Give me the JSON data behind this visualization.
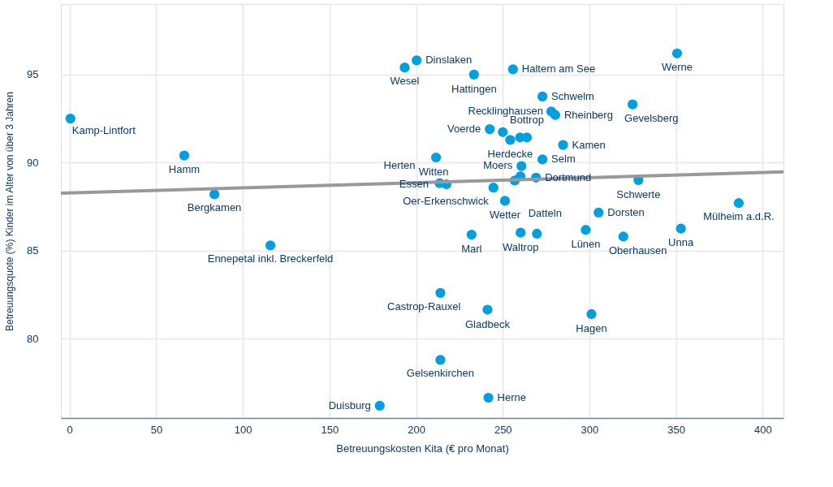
{
  "chart_data": {
    "type": "scatter",
    "xlabel": "Betreuungskosten Kita (€ pro Monat)",
    "ylabel": "Betreuungsquote (%) Kinder im Alter von über 3 Jahren",
    "xlim": [
      -5,
      412
    ],
    "ylim": [
      75.5,
      99
    ],
    "xticks": [
      0,
      50,
      100,
      150,
      200,
      250,
      300,
      350,
      400
    ],
    "yticks": [
      80,
      85,
      90,
      95
    ],
    "grid": true,
    "series": [
      {
        "color": "#009fe0",
        "marker": "circle",
        "x": [
          0.5,
          66.2,
          83.6,
          115.9,
          193.4,
          200.3,
          233.4,
          255.9,
          350.6,
          272.9,
          278,
          280.3,
          324.9,
          242.5,
          250,
          254.3,
          260,
          263.9,
          284.8,
          211.5,
          272.9,
          260.8,
          213.6,
          217.5,
          244.6,
          256.9,
          260.2,
          269.2,
          328.3,
          251.3,
          305.3,
          232,
          260.3,
          269.7,
          297.9,
          319.6,
          352.8,
          386.2,
          214,
          241.2,
          301.2,
          214,
          179,
          241.7
        ],
        "values": [
          92.5,
          90.4,
          88.2,
          85.3,
          95.4,
          95.8,
          95.0,
          95.3,
          96.2,
          93.75,
          92.9,
          92.7,
          93.3,
          91.9,
          91.73,
          91.29,
          91.43,
          91.43,
          91.0,
          90.29,
          90.18,
          89.8,
          88.83,
          88.77,
          88.58,
          88.98,
          89.22,
          89.15,
          89.01,
          87.83,
          87.16,
          85.91,
          86.02,
          85.96,
          86.18,
          85.8,
          86.25,
          87.7,
          82.6,
          81.65,
          81.4,
          78.8,
          76.2,
          76.65
        ]
      },
      {
        "type": "line",
        "color": "#999999",
        "marker": "none",
        "line_style": "solid",
        "x": [
          -5,
          412
        ],
        "values": [
          88.26,
          89.47
        ]
      }
    ],
    "annotations": [
      {
        "text": "Kamp-Lintfort",
        "x": 0.5,
        "y": 92.5
      },
      {
        "text": "Hamm",
        "x": 66.2,
        "y": 90.4
      },
      {
        "text": "Bergkamen",
        "x": 83.6,
        "y": 88.2
      },
      {
        "text": "Ennepetal inkl. Breckerfeld",
        "x": 115.9,
        "y": 85.3
      },
      {
        "text": "Wesel",
        "x": 193.4,
        "y": 95.4
      },
      {
        "text": "Dinslaken",
        "x": 200.3,
        "y": 95.8
      },
      {
        "text": "Hattingen",
        "x": 233.4,
        "y": 95.0
      },
      {
        "text": "Haltern am See",
        "x": 255.9,
        "y": 95.3
      },
      {
        "text": "Werne",
        "x": 350.6,
        "y": 96.2
      },
      {
        "text": "Schwelm",
        "x": 272.9,
        "y": 93.75
      },
      {
        "text": "Recklinghausen",
        "x": 278,
        "y": 92.9
      },
      {
        "text": "Rheinberg",
        "x": 280.3,
        "y": 92.7
      },
      {
        "text": "Gevelsberg",
        "x": 324.9,
        "y": 93.3
      },
      {
        "text": "Voerde",
        "x": 242.5,
        "y": 91.9
      },
      {
        "text": "Bottrop",
        "x": 263.9,
        "y": 91.43
      },
      {
        "text": "Herdecke",
        "x": 254.3,
        "y": 91.29
      },
      {
        "text": "Kamen",
        "x": 284.8,
        "y": 91.0
      },
      {
        "text": "Witten",
        "x": 211.5,
        "y": 90.29
      },
      {
        "text": "Herten",
        "x": 213.6,
        "y": 88.83
      },
      {
        "text": "Essen",
        "x": 217.5,
        "y": 88.77
      },
      {
        "text": "Selm",
        "x": 272.9,
        "y": 90.18
      },
      {
        "text": "Moers",
        "x": 260.8,
        "y": 89.8
      },
      {
        "text": "Dortmund",
        "x": 269.2,
        "y": 89.15
      },
      {
        "text": "Schwerte",
        "x": 328.3,
        "y": 89.01
      },
      {
        "text": "Oer-Erkenschwick",
        "x": 244.6,
        "y": 88.58
      },
      {
        "text": "Wetter",
        "x": 251.3,
        "y": 87.83
      },
      {
        "text": "Dorsten",
        "x": 305.3,
        "y": 87.16
      },
      {
        "text": "Mülheim a.d.R.",
        "x": 386.2,
        "y": 87.7
      },
      {
        "text": "Marl",
        "x": 232,
        "y": 85.91
      },
      {
        "text": "Waltrop",
        "x": 260.3,
        "y": 86.02
      },
      {
        "text": "Datteln",
        "x": 269.7,
        "y": 85.96
      },
      {
        "text": "Lünen",
        "x": 297.9,
        "y": 86.18
      },
      {
        "text": "Oberhausen",
        "x": 319.6,
        "y": 85.8
      },
      {
        "text": "Unna",
        "x": 352.8,
        "y": 86.25
      },
      {
        "text": "Castrop-Rauxel",
        "x": 214,
        "y": 82.6
      },
      {
        "text": "Gladbeck",
        "x": 241.2,
        "y": 81.65
      },
      {
        "text": "Hagen",
        "x": 301.2,
        "y": 81.4
      },
      {
        "text": "Gelsenkirchen",
        "x": 214,
        "y": 78.8
      },
      {
        "text": "Duisburg",
        "x": 179,
        "y": 76.2
      },
      {
        "text": "Herne",
        "x": 241.7,
        "y": 76.65
      }
    ]
  }
}
